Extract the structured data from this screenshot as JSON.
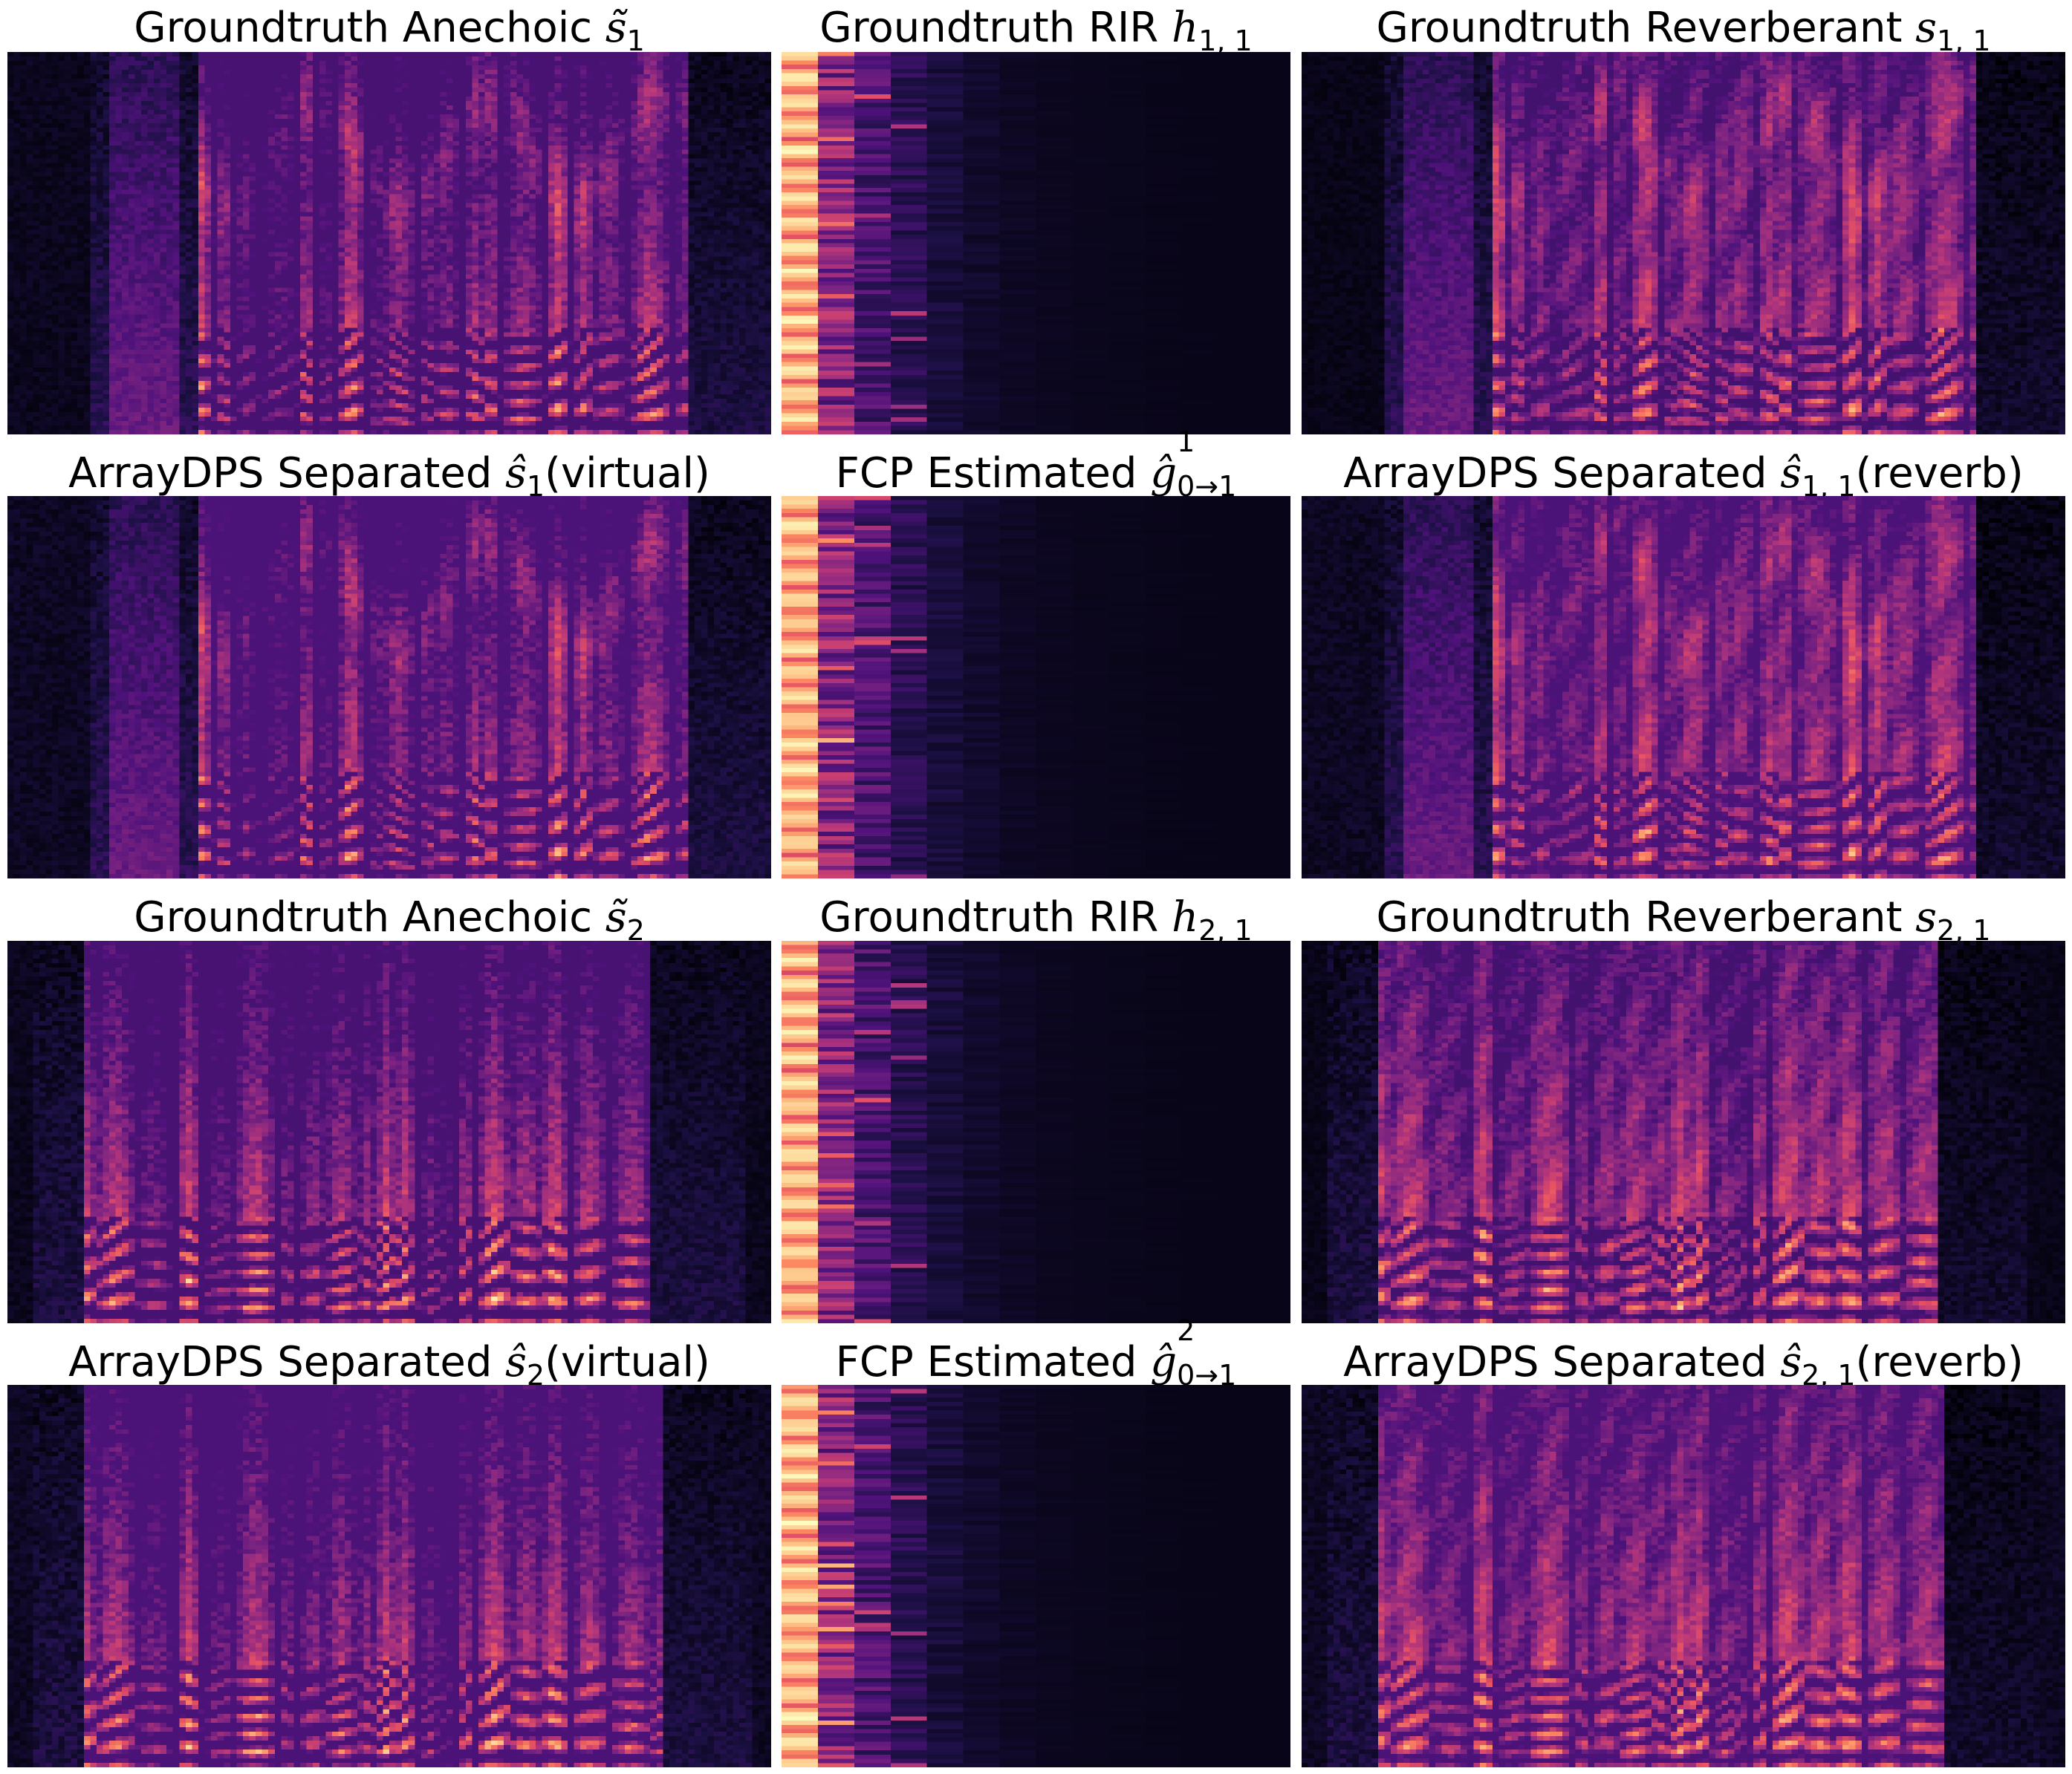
{
  "chart_data": [
    {
      "type": "heatmap",
      "kind": "spectrogram",
      "colormap": "magma",
      "row": 0,
      "col": 0,
      "title_text": "Groundtruth Anechoic ",
      "symbol": "s̃",
      "sub": "1",
      "sup": "",
      "suffix": "",
      "speaker": 1,
      "onset": 0.25,
      "offset": 0.885,
      "reverb": false,
      "floor": 0.05
    },
    {
      "type": "heatmap",
      "kind": "rir",
      "colormap": "magma",
      "row": 0,
      "col": 1,
      "title_text": "Groundtruth RIR ",
      "symbol": "h",
      "sub": "1, 1",
      "sup": "",
      "suffix": "",
      "seed": 11
    },
    {
      "type": "heatmap",
      "kind": "spectrogram",
      "colormap": "magma",
      "row": 0,
      "col": 2,
      "title_text": "Groundtruth Reverberant ",
      "symbol": "s",
      "sub": "1, 1",
      "sup": "",
      "suffix": "",
      "speaker": 1,
      "onset": 0.25,
      "offset": 0.88,
      "reverb": true,
      "floor": 0.04
    },
    {
      "type": "heatmap",
      "kind": "spectrogram",
      "colormap": "magma",
      "row": 1,
      "col": 0,
      "title_text": "ArrayDPS Separated ",
      "symbol": "ŝ",
      "sub": "1",
      "sup": "",
      "suffix": "(virtual)",
      "speaker": 1,
      "onset": 0.25,
      "offset": 0.885,
      "reverb": false,
      "floor": 0.06
    },
    {
      "type": "heatmap",
      "kind": "rir",
      "colormap": "magma",
      "row": 1,
      "col": 1,
      "title_text": "FCP Estimated ",
      "symbol": "ĝ",
      "sub": "0→1",
      "sup": "1",
      "suffix": "",
      "seed": 23
    },
    {
      "type": "heatmap",
      "kind": "spectrogram",
      "colormap": "magma",
      "row": 1,
      "col": 2,
      "title_text": "ArrayDPS Separated ",
      "symbol": "ŝ",
      "sub": "1, 1",
      "sup": "",
      "suffix": "(reverb)",
      "speaker": 1,
      "onset": 0.25,
      "offset": 0.88,
      "reverb": true,
      "floor": 0.06
    },
    {
      "type": "heatmap",
      "kind": "spectrogram",
      "colormap": "magma",
      "row": 2,
      "col": 0,
      "title_text": "Groundtruth Anechoic ",
      "symbol": "s̃",
      "sub": "2",
      "sup": "",
      "suffix": "",
      "speaker": 2,
      "onset": 0.1,
      "offset": 0.84,
      "reverb": false,
      "floor": 0.05
    },
    {
      "type": "heatmap",
      "kind": "rir",
      "colormap": "magma",
      "row": 2,
      "col": 1,
      "title_text": "Groundtruth RIR ",
      "symbol": "h",
      "sub": "2, 1",
      "sup": "",
      "suffix": "",
      "seed": 37
    },
    {
      "type": "heatmap",
      "kind": "spectrogram",
      "colormap": "magma",
      "row": 2,
      "col": 2,
      "title_text": "Groundtruth Reverberant ",
      "symbol": "s",
      "sub": "2, 1",
      "sup": "",
      "suffix": "",
      "speaker": 2,
      "onset": 0.1,
      "offset": 0.83,
      "reverb": true,
      "floor": 0.04
    },
    {
      "type": "heatmap",
      "kind": "spectrogram",
      "colormap": "magma",
      "row": 3,
      "col": 0,
      "title_text": "ArrayDPS Separated ",
      "symbol": "ŝ",
      "sub": "2",
      "sup": "",
      "suffix": "(virtual)",
      "speaker": 2,
      "onset": 0.1,
      "offset": 0.855,
      "reverb": false,
      "floor": 0.06
    },
    {
      "type": "heatmap",
      "kind": "rir",
      "colormap": "magma",
      "row": 3,
      "col": 1,
      "title_text": "FCP Estimated ",
      "symbol": "ĝ",
      "sub": "0→1",
      "sup": "2",
      "suffix": "",
      "seed": 53
    },
    {
      "type": "heatmap",
      "kind": "spectrogram",
      "colormap": "magma",
      "row": 3,
      "col": 2,
      "title_text": "ArrayDPS Separated ",
      "symbol": "ŝ",
      "sub": "2, 1",
      "sup": "",
      "suffix": "(reverb)",
      "speaker": 2,
      "onset": 0.1,
      "offset": 0.84,
      "reverb": true,
      "floor": 0.06
    }
  ]
}
